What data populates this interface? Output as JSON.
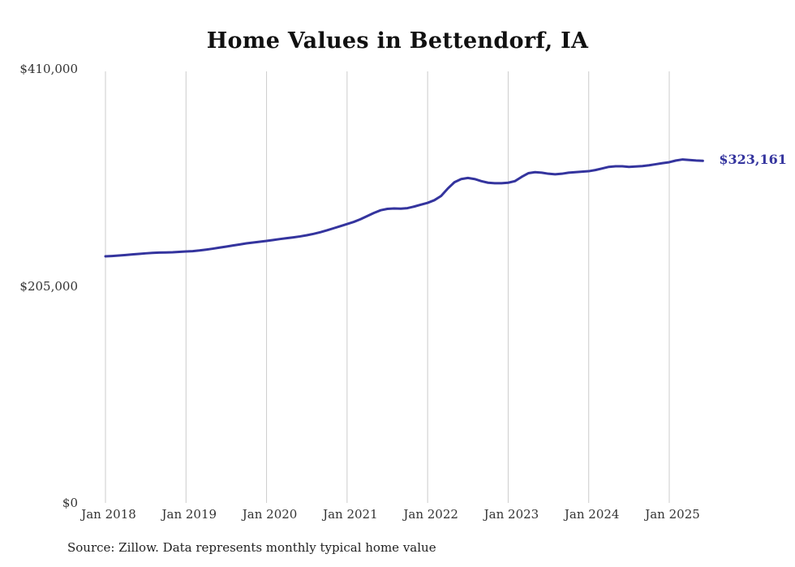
{
  "colors": {
    "line": "#34349e",
    "grid": "#cccccc",
    "axis_text": "#333333",
    "end_label": "#34349e"
  },
  "chart_data": {
    "type": "line",
    "title": "Home Values in Bettendorf, IA",
    "source": "Source: Zillow. Data represents monthly typical home value",
    "end_label": "$323,161",
    "end_value": 323161,
    "xlabel": "",
    "ylabel": "",
    "ylim": [
      0,
      410000
    ],
    "grid": "vertical-only",
    "legend": "none",
    "frequency": "monthly",
    "x_start": "Jan 2018",
    "x_end": "Jun 2025",
    "x_ticks": [
      "Jan 2018",
      "Jan 2019",
      "Jan 2020",
      "Jan 2021",
      "Jan 2022",
      "Jan 2023",
      "Jan 2024",
      "Jan 2025"
    ],
    "y_ticks": [
      {
        "label": "$410,000",
        "value": 410000
      },
      {
        "label": "$205,000",
        "value": 205000
      },
      {
        "label": "$0",
        "value": 0
      }
    ],
    "series": [
      {
        "name": "Typical home value",
        "values": [
          233000,
          233300,
          233700,
          234200,
          234800,
          235300,
          235800,
          236200,
          236500,
          236600,
          236800,
          237200,
          237600,
          237900,
          238500,
          239300,
          240200,
          241200,
          242200,
          243200,
          244200,
          245200,
          246000,
          246800,
          247500,
          248400,
          249300,
          250100,
          250900,
          251800,
          252900,
          254200,
          255700,
          257500,
          259500,
          261500,
          263500,
          265500,
          268000,
          271000,
          274000,
          276500,
          277800,
          278200,
          278000,
          278500,
          280000,
          281800,
          283500,
          286000,
          290000,
          297000,
          303000,
          306000,
          307000,
          306000,
          304000,
          302500,
          302000,
          302000,
          302500,
          304000,
          308000,
          311500,
          312500,
          312000,
          311000,
          310500,
          311000,
          312000,
          312500,
          313000,
          313400,
          314500,
          316000,
          317500,
          318000,
          318000,
          317500,
          317800,
          318200,
          319000,
          320000,
          321000,
          321900,
          323500,
          324500,
          324000,
          323500,
          323161
        ]
      }
    ]
  }
}
